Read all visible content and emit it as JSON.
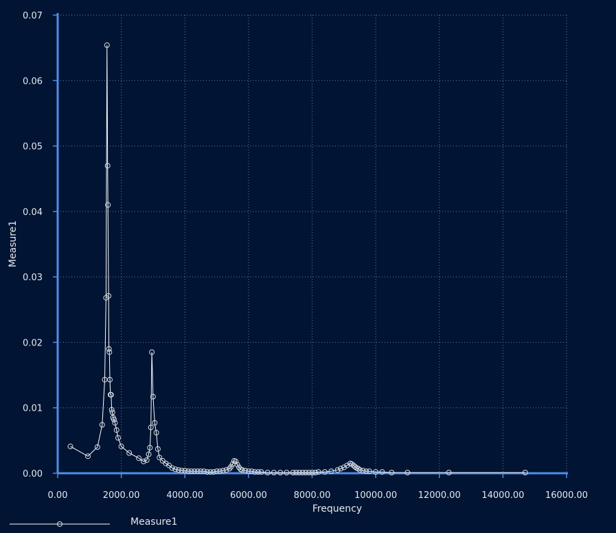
{
  "chart_data": {
    "type": "line",
    "title": "",
    "xlabel": "Frequency",
    "ylabel": "Measure1",
    "xlim": [
      0,
      16000
    ],
    "ylim": [
      0,
      0.07
    ],
    "x_ticks": [
      "0.00",
      "2000.00",
      "4000.00",
      "6000.00",
      "8000.00",
      "10000.00",
      "12000.00",
      "14000.00",
      "16000.00"
    ],
    "y_ticks": [
      "0.00",
      "0.01",
      "0.02",
      "0.03",
      "0.04",
      "0.05",
      "0.06",
      "0.07"
    ],
    "grid": true,
    "legend_position": "bottom-left",
    "colors": {
      "background": "#011433",
      "axis": "#4f8fe8",
      "grid": "#6d7f9a",
      "series": "#ffffff",
      "text": "#e6e9ef"
    },
    "series": [
      {
        "name": "Measure1",
        "marker": "circle",
        "x": [
          400,
          950,
          1250,
          1400,
          1480,
          1520,
          1550,
          1570,
          1580,
          1600,
          1610,
          1625,
          1640,
          1660,
          1680,
          1700,
          1720,
          1740,
          1770,
          1800,
          1850,
          1900,
          2000,
          2250,
          2550,
          2700,
          2800,
          2860,
          2900,
          2930,
          2960,
          3000,
          3050,
          3100,
          3150,
          3200,
          3300,
          3400,
          3500,
          3600,
          3700,
          3800,
          3900,
          4000,
          4100,
          4200,
          4300,
          4400,
          4500,
          4600,
          4700,
          4800,
          4900,
          5000,
          5100,
          5200,
          5300,
          5400,
          5450,
          5500,
          5550,
          5600,
          5650,
          5700,
          5750,
          5800,
          5900,
          6000,
          6100,
          6200,
          6300,
          6400,
          6600,
          6800,
          7000,
          7200,
          7400,
          7500,
          7600,
          7700,
          7800,
          7900,
          8000,
          8100,
          8200,
          8400,
          8600,
          8800,
          8900,
          9000,
          9100,
          9200,
          9250,
          9300,
          9350,
          9400,
          9450,
          9500,
          9600,
          9700,
          9800,
          10000,
          10200,
          10500,
          11000,
          12300,
          14700
        ],
        "values": [
          0.0041,
          0.0026,
          0.004,
          0.0074,
          0.0143,
          0.0268,
          0.0654,
          0.047,
          0.041,
          0.0271,
          0.019,
          0.0185,
          0.0143,
          0.012,
          0.012,
          0.0097,
          0.0093,
          0.0085,
          0.0082,
          0.0077,
          0.0066,
          0.0054,
          0.0041,
          0.0031,
          0.0023,
          0.0018,
          0.002,
          0.0029,
          0.0039,
          0.007,
          0.0185,
          0.0117,
          0.0077,
          0.0062,
          0.0037,
          0.0024,
          0.0019,
          0.0015,
          0.0012,
          0.0008,
          0.0006,
          0.0005,
          0.0004,
          0.0004,
          0.0003,
          0.0003,
          0.0003,
          0.0003,
          0.0003,
          0.0003,
          0.0002,
          0.0002,
          0.0002,
          0.0003,
          0.0003,
          0.0004,
          0.0005,
          0.0007,
          0.001,
          0.0014,
          0.0019,
          0.0018,
          0.0013,
          0.0009,
          0.0006,
          0.0005,
          0.0004,
          0.0003,
          0.0003,
          0.0002,
          0.0002,
          0.0002,
          0.0001,
          0.0001,
          0.0001,
          0.0001,
          0.0001,
          0.0001,
          0.0001,
          0.0001,
          0.0001,
          0.0001,
          0.0001,
          0.0001,
          0.0002,
          0.0002,
          0.0003,
          0.0005,
          0.0007,
          0.0009,
          0.0012,
          0.0015,
          0.0014,
          0.0012,
          0.001,
          0.0008,
          0.0007,
          0.0005,
          0.0004,
          0.0003,
          0.0003,
          0.0002,
          0.0002,
          0.0001,
          0.0001,
          0.0001,
          0.0001
        ]
      }
    ]
  }
}
